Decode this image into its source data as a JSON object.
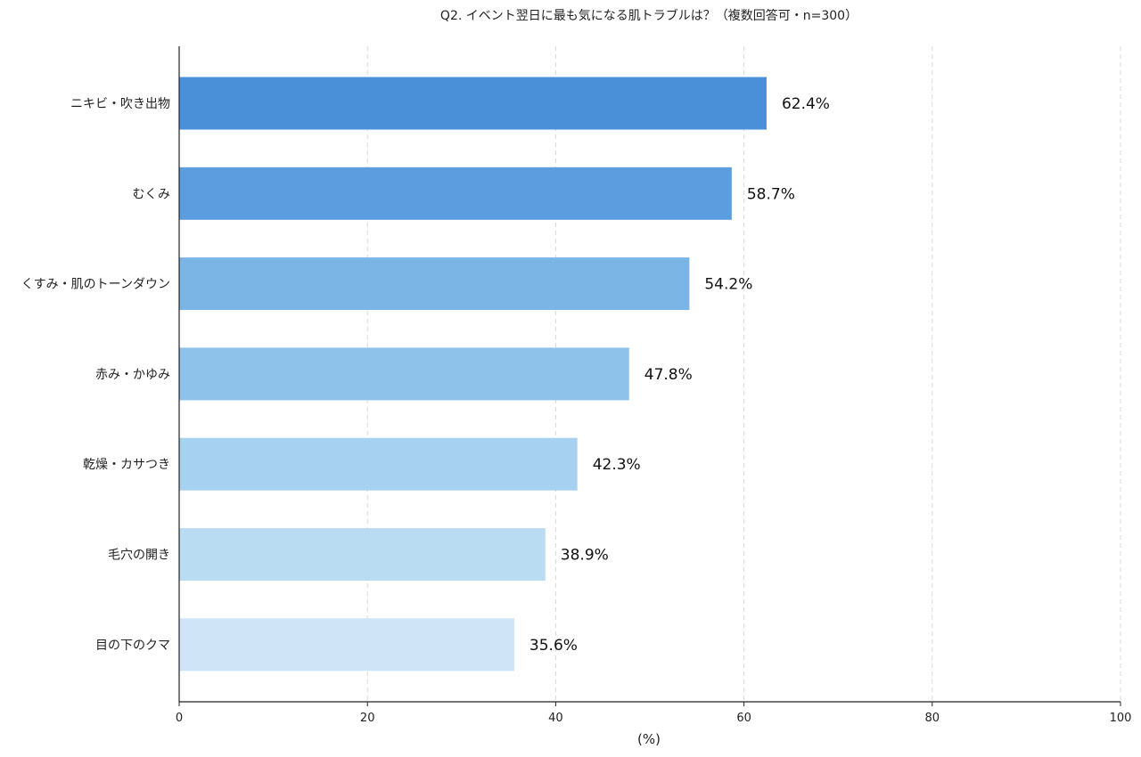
{
  "chart_data": {
    "type": "bar",
    "orientation": "horizontal",
    "title": "Q2. イベント翌日に最も気になる肌トラブルは？（複数回答可・n=300）",
    "xlabel": "(%)",
    "ylabel": "",
    "xlim": [
      0,
      100
    ],
    "xticks": [
      0,
      20,
      40,
      60,
      80,
      100
    ],
    "grid": "vertical dashed",
    "categories": [
      "ニキビ・吹き出物",
      "むくみ",
      "くすみ・肌のトーンダウン",
      "赤み・かゆみ",
      "乾燥・カサつき",
      "毛穴の開き",
      "目の下のクマ"
    ],
    "values": [
      62.4,
      58.7,
      54.2,
      47.8,
      42.3,
      38.9,
      35.6
    ],
    "value_labels": [
      "62.4%",
      "58.7%",
      "54.2%",
      "47.8%",
      "42.3%",
      "38.9%",
      "35.6%"
    ],
    "colors": [
      "#4a90d9",
      "#5b9ddf",
      "#7ab5e6",
      "#8fc2ea",
      "#a6d1f0",
      "#b9dcf2",
      "#cfe4f6"
    ]
  }
}
